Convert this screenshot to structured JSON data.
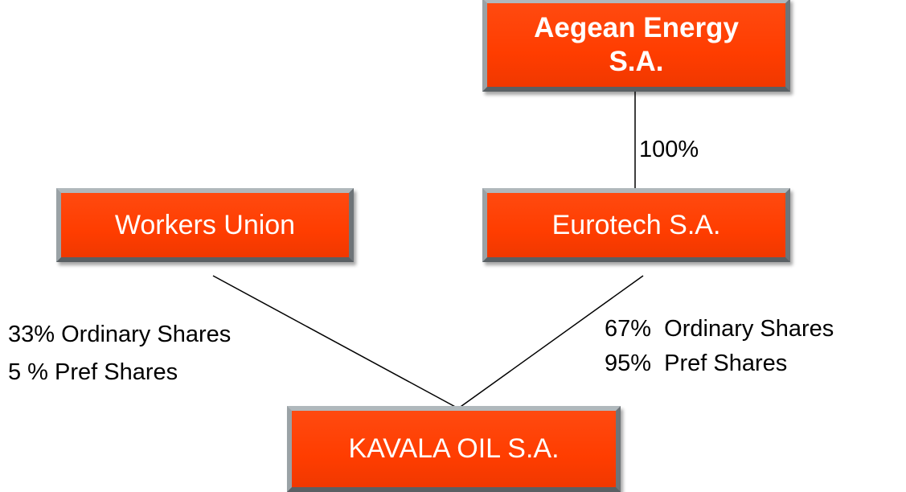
{
  "nodes": [
    {
      "label": "Aegean Energy S.A."
    },
    {
      "label": "Workers Union"
    },
    {
      "label": "Eurotech S.A."
    },
    {
      "label": "KAVALA OIL S.A."
    }
  ],
  "edges": [
    {
      "labels": [
        "100%"
      ]
    },
    {
      "labels": [
        "33% Ordinary Shares",
        "5 % Pref Shares"
      ]
    },
    {
      "labels": [
        "67%  Ordinary Shares",
        "95%  Pref Shares"
      ]
    }
  ]
}
